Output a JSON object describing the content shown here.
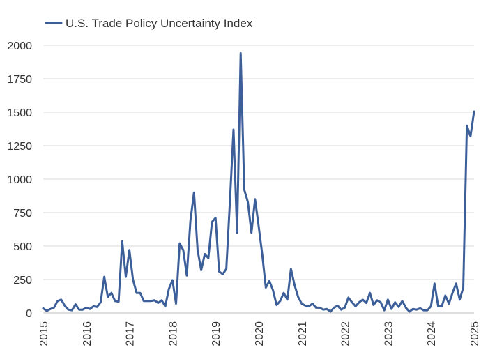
{
  "chart_data": {
    "type": "line",
    "title": "",
    "xlabel": "",
    "ylabel": "",
    "ylim": [
      0,
      2000
    ],
    "y_ticks": [
      0,
      250,
      500,
      750,
      1000,
      1250,
      1500,
      1750,
      2000
    ],
    "y_tick_labels": [
      "0",
      "250",
      "500",
      "750",
      "1000",
      "1250",
      "1500",
      "1750",
      "2000"
    ],
    "x_ticks": [
      2015,
      2016,
      2017,
      2018,
      2019,
      2020,
      2021,
      2022,
      2023,
      2024,
      2025
    ],
    "x_tick_labels": [
      "2015",
      "2016",
      "2017",
      "2018",
      "2019",
      "2020",
      "2021",
      "2022",
      "2023",
      "2024",
      "2025"
    ],
    "xlim": [
      2015,
      2025
    ],
    "grid": "horizontal",
    "legend": "top-left",
    "series": [
      {
        "name": "U.S. Trade Policy Uncertainty Index",
        "color": "#3c5f99",
        "x": [
          2015.0,
          2015.083,
          2015.167,
          2015.25,
          2015.333,
          2015.417,
          2015.5,
          2015.583,
          2015.667,
          2015.75,
          2015.833,
          2015.917,
          2016.0,
          2016.083,
          2016.167,
          2016.25,
          2016.333,
          2016.417,
          2016.5,
          2016.583,
          2016.667,
          2016.75,
          2016.833,
          2016.917,
          2017.0,
          2017.083,
          2017.167,
          2017.25,
          2017.333,
          2017.417,
          2017.5,
          2017.583,
          2017.667,
          2017.75,
          2017.833,
          2017.917,
          2018.0,
          2018.083,
          2018.167,
          2018.25,
          2018.333,
          2018.417,
          2018.5,
          2018.583,
          2018.667,
          2018.75,
          2018.833,
          2018.917,
          2019.0,
          2019.083,
          2019.167,
          2019.25,
          2019.333,
          2019.417,
          2019.5,
          2019.583,
          2019.667,
          2019.75,
          2019.833,
          2019.917,
          2020.0,
          2020.083,
          2020.167,
          2020.25,
          2020.333,
          2020.417,
          2020.5,
          2020.583,
          2020.667,
          2020.75,
          2020.833,
          2020.917,
          2021.0,
          2021.083,
          2021.167,
          2021.25,
          2021.333,
          2021.417,
          2021.5,
          2021.583,
          2021.667,
          2021.75,
          2021.833,
          2021.917,
          2022.0,
          2022.083,
          2022.167,
          2022.25,
          2022.333,
          2022.417,
          2022.5,
          2022.583,
          2022.667,
          2022.75,
          2022.833,
          2022.917,
          2023.0,
          2023.083,
          2023.167,
          2023.25,
          2023.333,
          2023.417,
          2023.5,
          2023.583,
          2023.667,
          2023.75,
          2023.833,
          2023.917,
          2024.0,
          2024.083,
          2024.167,
          2024.25,
          2024.333,
          2024.417,
          2024.5,
          2024.583,
          2024.667,
          2024.75,
          2024.833,
          2024.917,
          2025.0
        ],
        "values": [
          35,
          15,
          30,
          40,
          90,
          100,
          55,
          25,
          20,
          65,
          25,
          25,
          40,
          30,
          50,
          45,
          80,
          270,
          120,
          150,
          90,
          85,
          535,
          270,
          470,
          250,
          150,
          150,
          90,
          90,
          90,
          95,
          75,
          95,
          50,
          180,
          245,
          70,
          520,
          470,
          280,
          690,
          900,
          470,
          320,
          440,
          410,
          680,
          710,
          310,
          290,
          330,
          830,
          1370,
          600,
          1940,
          920,
          830,
          600,
          850,
          650,
          440,
          190,
          240,
          170,
          60,
          90,
          150,
          100,
          330,
          210,
          120,
          70,
          55,
          50,
          70,
          40,
          40,
          25,
          30,
          10,
          40,
          55,
          25,
          40,
          115,
          80,
          50,
          80,
          100,
          75,
          150,
          60,
          95,
          80,
          20,
          100,
          30,
          80,
          45,
          90,
          40,
          10,
          30,
          25,
          35,
          20,
          20,
          50,
          220,
          50,
          50,
          130,
          70,
          150,
          220,
          100,
          190,
          1400,
          1320,
          1505
        ]
      }
    ]
  }
}
